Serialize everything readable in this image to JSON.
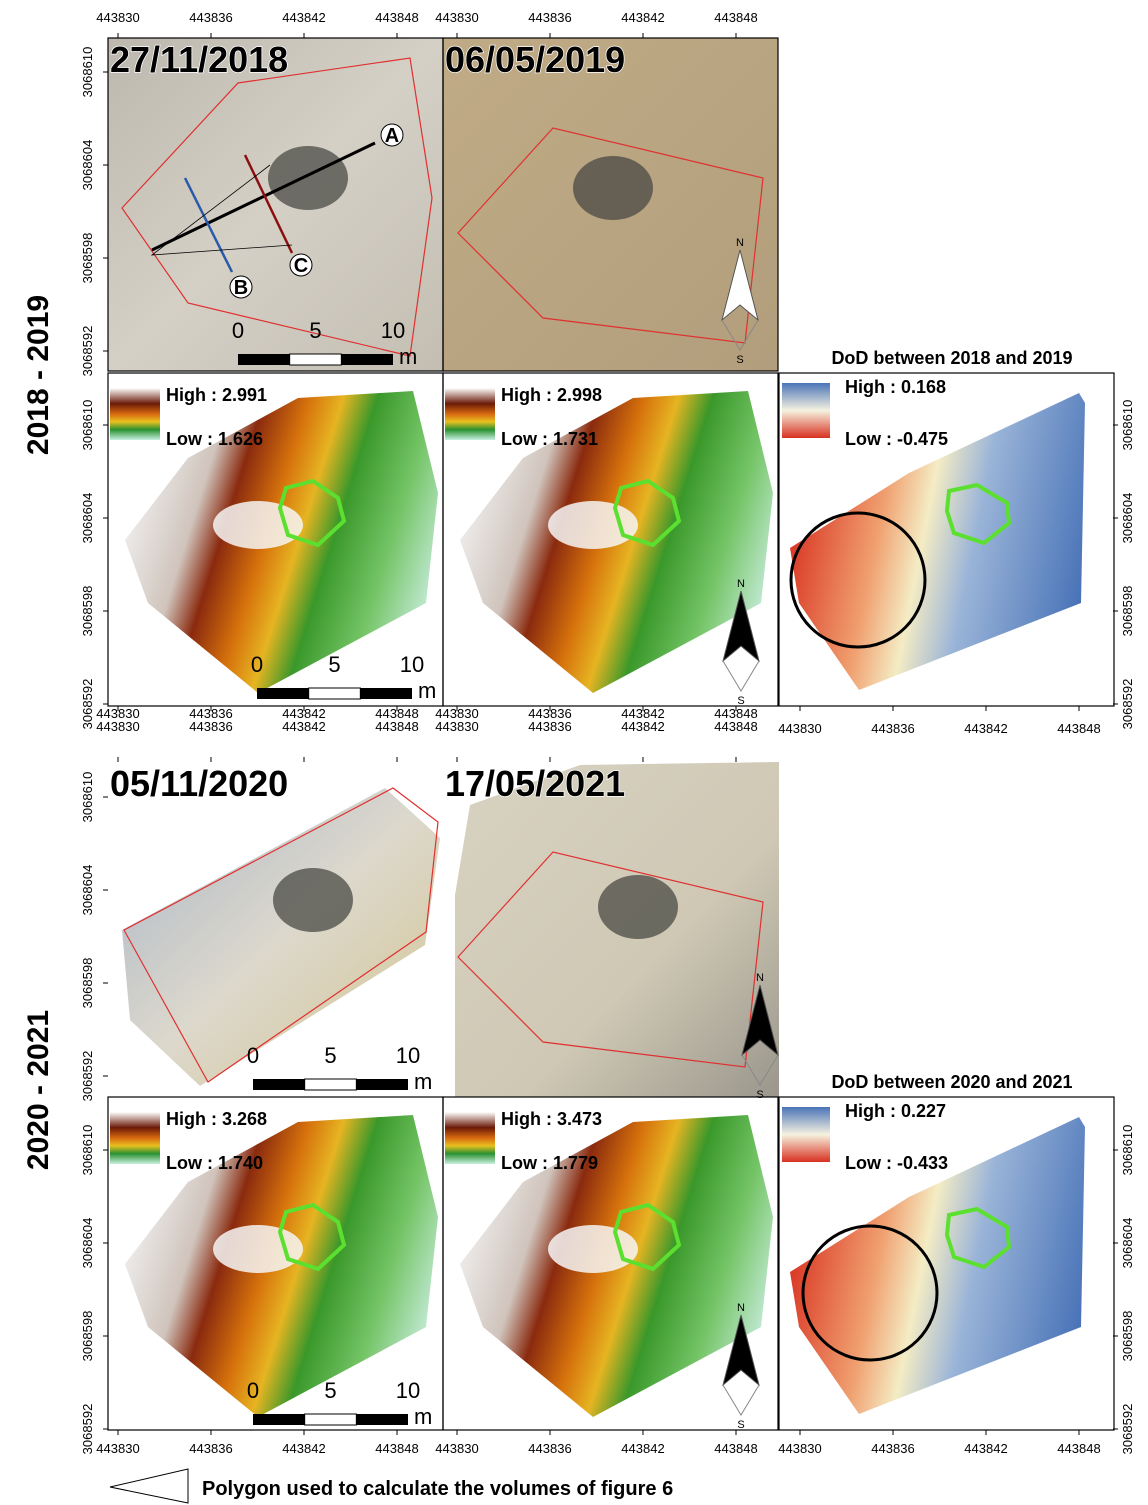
{
  "periods": [
    "2018 - 2019",
    "2020 - 2021"
  ],
  "orthophotos": [
    "27/11/2018",
    "06/05/2019",
    "05/11/2020",
    "17/05/2021"
  ],
  "profiles": [
    "A",
    "B",
    "C"
  ],
  "dem_legends": [
    {
      "high": "High : 2.991",
      "low": "Low : 1.626"
    },
    {
      "high": "High : 2.998",
      "low": "Low : 1.731"
    },
    {
      "high": "High : 3.268",
      "low": "Low : 1.740"
    },
    {
      "high": "High : 3.473",
      "low": "Low : 1.779"
    }
  ],
  "dod": [
    {
      "title": "DoD between 2018 and 2019",
      "high": "High : 0.168",
      "low": "Low : -0.475"
    },
    {
      "title": "DoD between 2020 and 2021",
      "high": "High : 0.227",
      "low": "Low : -0.433"
    }
  ],
  "scale_bar": {
    "ticks": [
      0,
      5,
      10
    ],
    "unit": "m"
  },
  "north_arrow": {
    "north": "N",
    "south": "S"
  },
  "xticks": [
    443830,
    443836,
    443842,
    443848
  ],
  "yticks": [
    3068592,
    3068598,
    3068604,
    3068610
  ],
  "legend": "Polygon used to calculate the volumes of figure 6"
}
